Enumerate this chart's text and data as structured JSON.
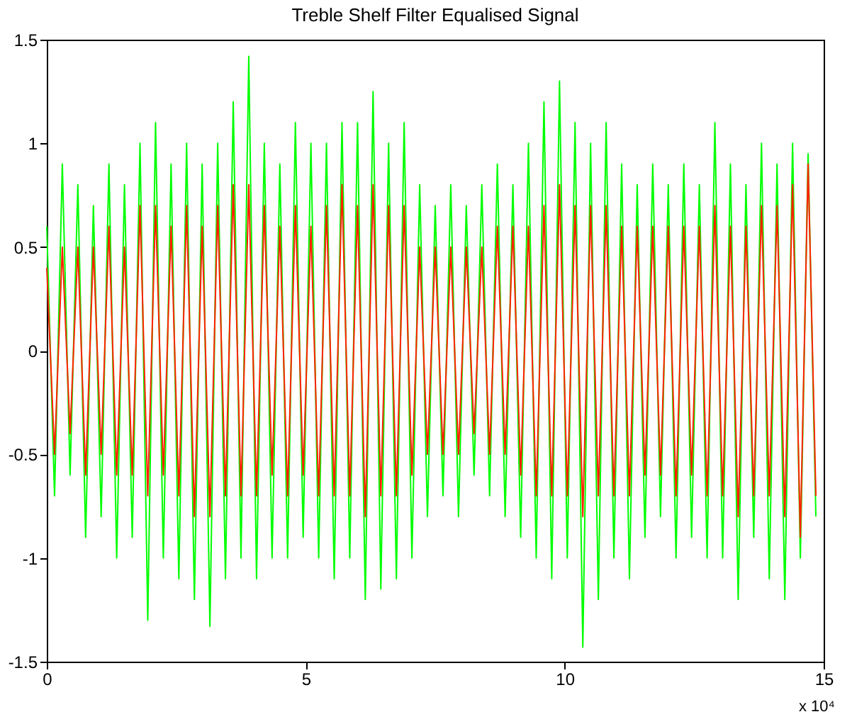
{
  "chart_data": {
    "type": "line",
    "title": "Treble Shelf Filter Equalised Signal",
    "x": [
      0,
      0.15,
      0.3,
      0.45,
      0.6,
      0.75,
      0.9,
      1.05,
      1.2,
      1.35,
      1.5,
      1.65,
      1.8,
      1.95,
      2.1,
      2.25,
      2.4,
      2.55,
      2.7,
      2.85,
      3.0,
      3.15,
      3.3,
      3.45,
      3.6,
      3.75,
      3.9,
      4.05,
      4.2,
      4.35,
      4.5,
      4.65,
      4.8,
      4.95,
      5.1,
      5.25,
      5.4,
      5.55,
      5.7,
      5.85,
      6.0,
      6.15,
      6.3,
      6.45,
      6.6,
      6.75,
      6.9,
      7.05,
      7.2,
      7.35,
      7.5,
      7.65,
      7.8,
      7.95,
      8.1,
      8.25,
      8.4,
      8.55,
      8.7,
      8.85,
      9.0,
      9.15,
      9.3,
      9.45,
      9.6,
      9.75,
      9.9,
      10.05,
      10.2,
      10.35,
      10.5,
      10.65,
      10.8,
      10.95,
      11.1,
      11.25,
      11.4,
      11.55,
      11.7,
      11.85,
      12.0,
      12.15,
      12.3,
      12.45,
      12.6,
      12.75,
      12.9,
      13.05,
      13.2,
      13.35,
      13.5,
      13.65,
      13.8,
      13.95,
      14.1,
      14.25,
      14.4,
      14.55,
      14.7,
      14.85
    ],
    "series": [
      {
        "color": "#00ff00",
        "values": [
          0.6,
          -0.7,
          0.9,
          -0.6,
          0.8,
          -0.9,
          0.7,
          -0.8,
          0.9,
          -1.0,
          0.8,
          -0.9,
          1.0,
          -1.3,
          1.1,
          -1.0,
          0.9,
          -1.1,
          1.0,
          -1.2,
          0.9,
          -1.33,
          1.0,
          -1.1,
          1.2,
          -1.0,
          1.42,
          -1.1,
          1.0,
          -1.0,
          0.9,
          -1.0,
          1.1,
          -0.9,
          1.0,
          -1.0,
          1.0,
          -1.1,
          1.1,
          -1.0,
          1.1,
          -1.2,
          1.25,
          -1.15,
          1.0,
          -1.1,
          1.1,
          -1.0,
          0.8,
          -0.8,
          0.7,
          -0.7,
          0.8,
          -0.8,
          0.7,
          -0.6,
          0.8,
          -0.7,
          0.9,
          -0.8,
          0.8,
          -0.9,
          1.0,
          -1.0,
          1.2,
          -1.1,
          1.3,
          -1.0,
          1.1,
          -1.43,
          1.0,
          -1.2,
          1.1,
          -1.0,
          0.9,
          -1.1,
          0.8,
          -0.9,
          0.9,
          -0.8,
          0.8,
          -1.0,
          0.9,
          -0.9,
          0.8,
          -1.0,
          1.1,
          -1.0,
          0.9,
          -1.2,
          0.8,
          -0.9,
          1.0,
          -1.1,
          0.9,
          -1.2,
          1.0,
          -1.0,
          0.95,
          -0.8
        ]
      },
      {
        "color": "#ff2200",
        "values": [
          0.4,
          -0.5,
          0.5,
          -0.4,
          0.5,
          -0.6,
          0.5,
          -0.5,
          0.6,
          -0.6,
          0.5,
          -0.6,
          0.7,
          -0.7,
          0.7,
          -0.6,
          0.6,
          -0.7,
          0.7,
          -0.8,
          0.6,
          -0.8,
          0.7,
          -0.7,
          0.8,
          -0.7,
          0.8,
          -0.7,
          0.7,
          -0.6,
          0.6,
          -0.7,
          0.7,
          -0.6,
          0.6,
          -0.7,
          0.7,
          -0.7,
          0.8,
          -0.7,
          0.7,
          -0.8,
          0.8,
          -0.7,
          0.7,
          -0.7,
          0.7,
          -0.6,
          0.5,
          -0.5,
          0.5,
          -0.5,
          0.5,
          -0.5,
          0.5,
          -0.4,
          0.5,
          -0.5,
          0.6,
          -0.5,
          0.6,
          -0.6,
          0.6,
          -0.7,
          0.7,
          -0.7,
          0.8,
          -0.7,
          0.7,
          -0.8,
          0.7,
          -0.7,
          0.7,
          -0.7,
          0.6,
          -0.7,
          0.6,
          -0.6,
          0.6,
          -0.6,
          0.6,
          -0.7,
          0.6,
          -0.6,
          0.6,
          -0.7,
          0.7,
          -0.7,
          0.6,
          -0.8,
          0.6,
          -0.7,
          0.7,
          -0.7,
          0.7,
          -0.8,
          0.8,
          -0.9,
          0.9,
          -0.7
        ]
      }
    ],
    "xlim": [
      0,
      15
    ],
    "xticks": [
      0,
      5,
      10,
      15
    ],
    "ylim": [
      -1.5,
      1.5
    ],
    "yticks": [
      -1.5,
      -1,
      -0.5,
      0,
      0.5,
      1,
      1.5
    ],
    "grid": false,
    "marker": "none",
    "line_style": "solid",
    "annotations": [
      "x 10⁴"
    ]
  }
}
